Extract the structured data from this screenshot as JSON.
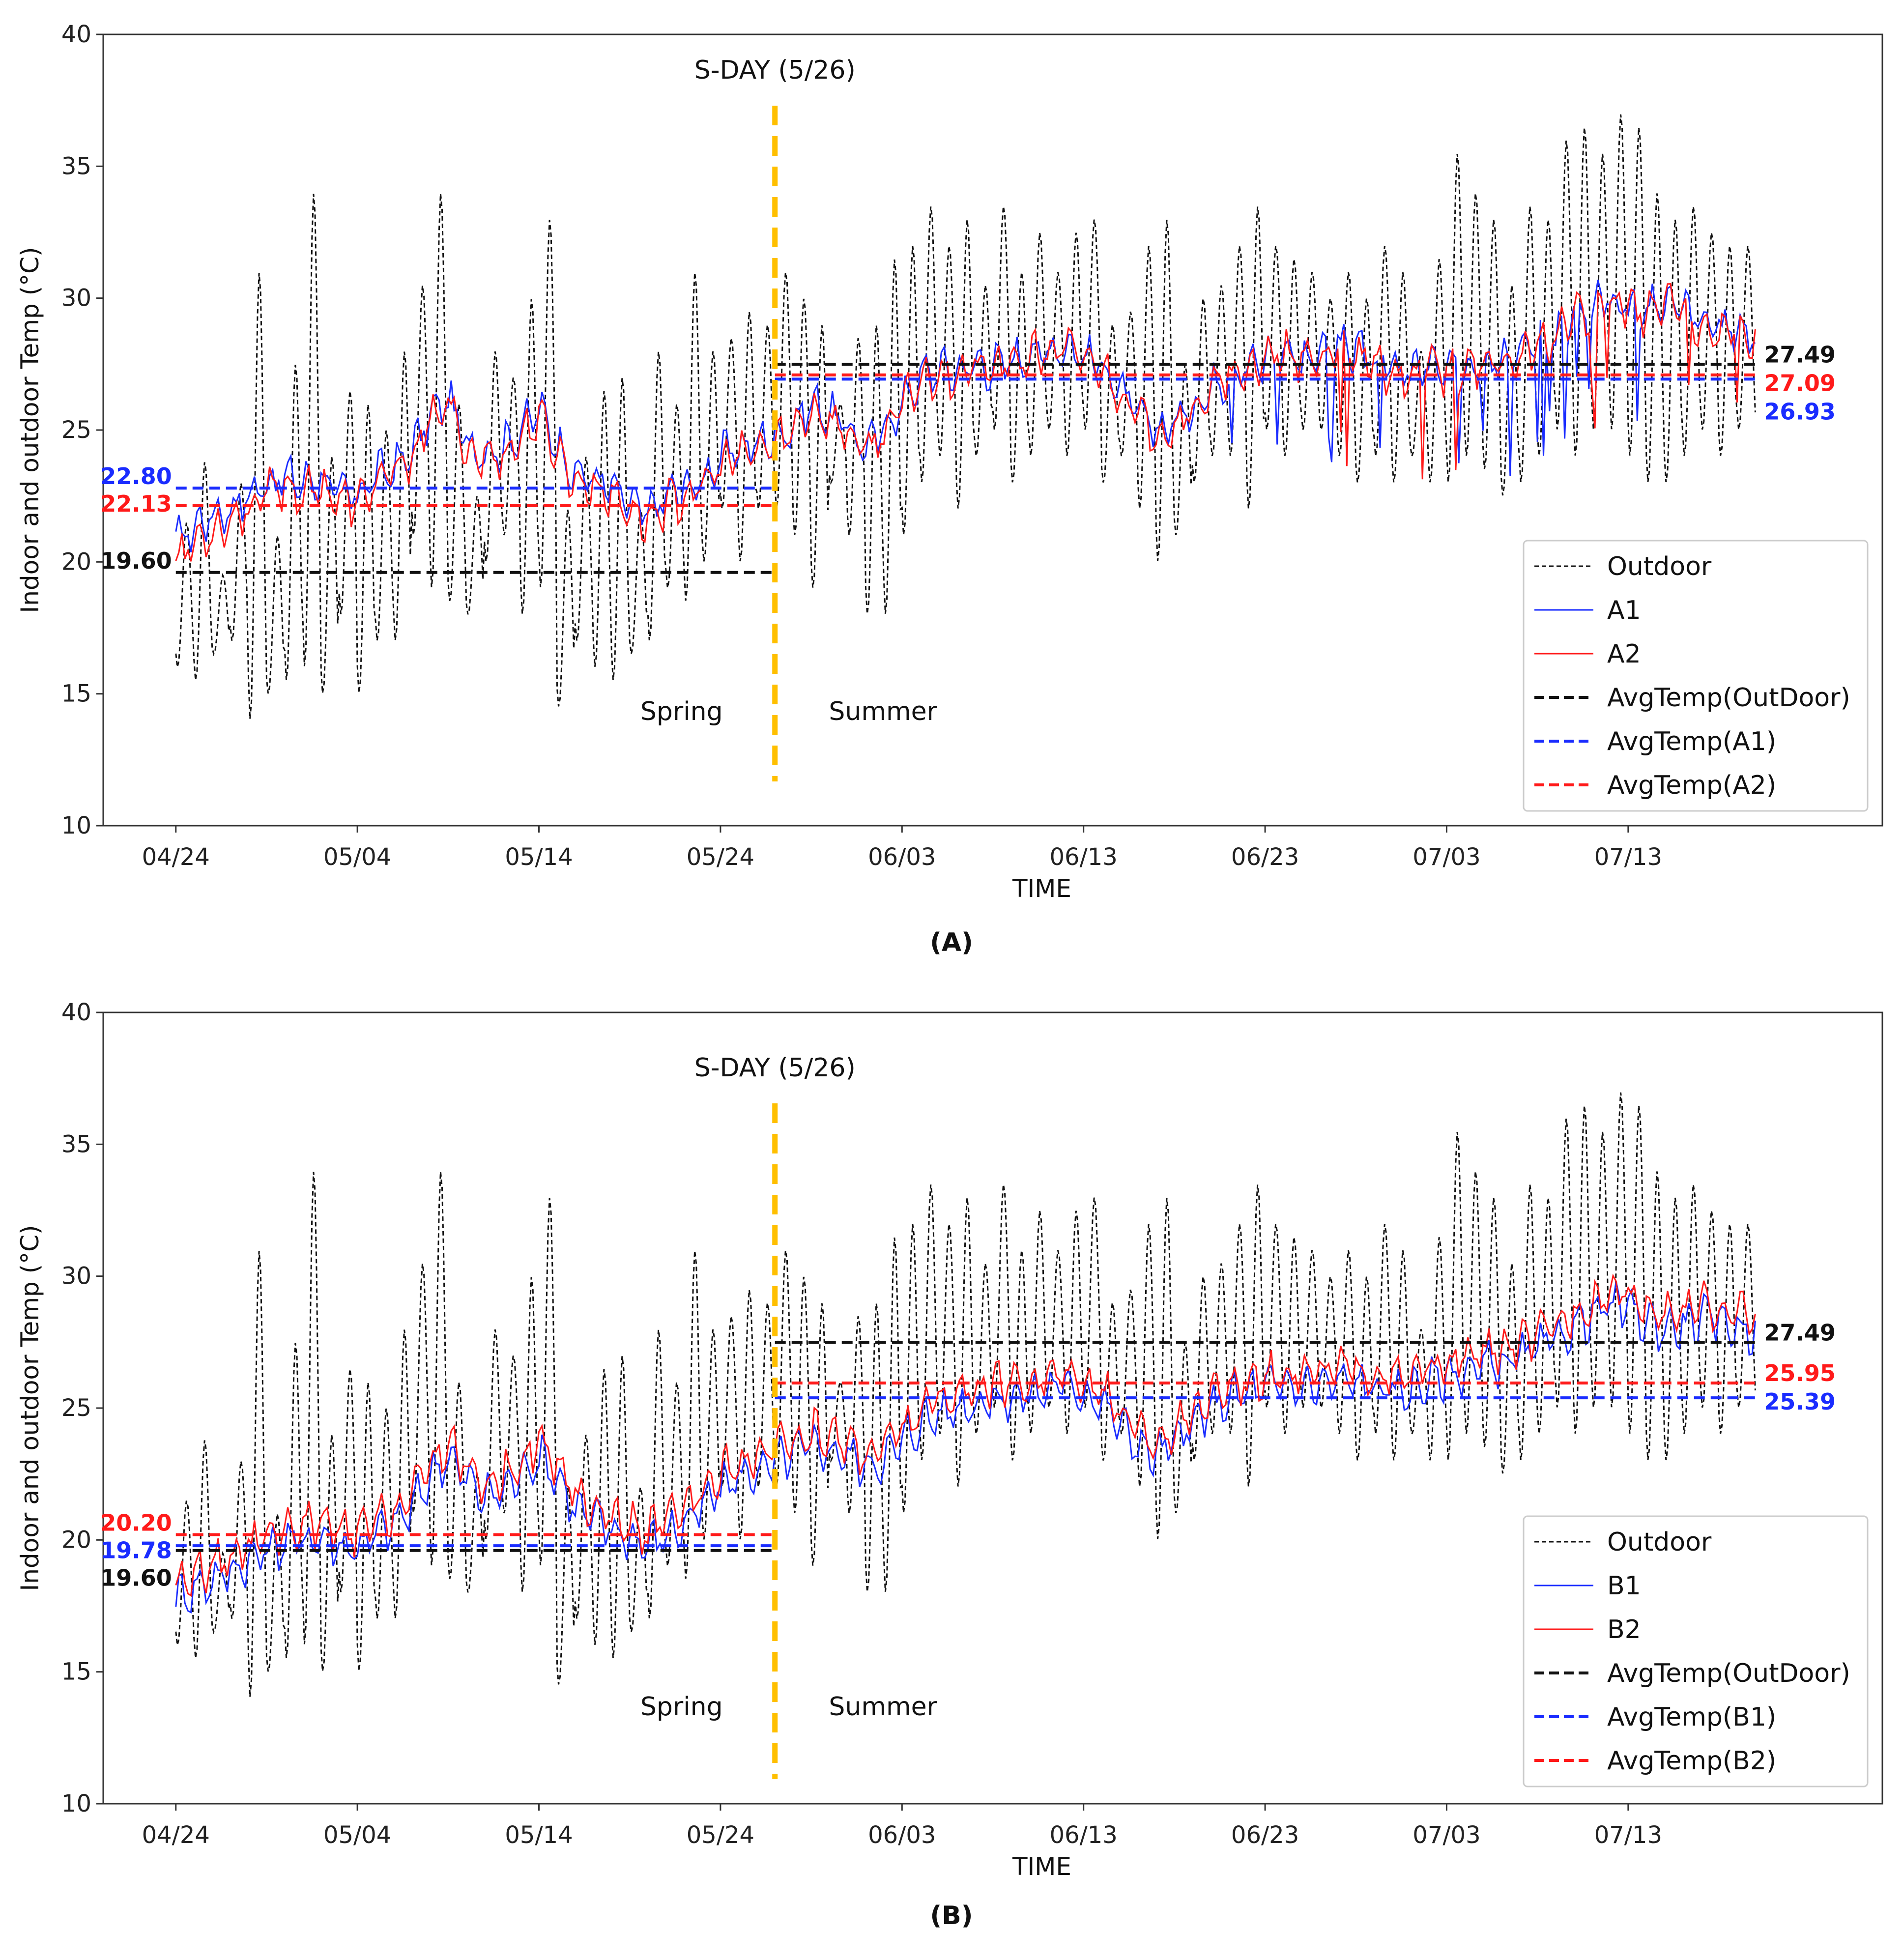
{
  "chart_data": [
    {
      "type": "line",
      "panel_label": "(A)",
      "xlabel": "TIME",
      "ylabel": "Indoor and outdoor Temp (°C)",
      "ylim": [
        10,
        40
      ],
      "yticks": [
        "10",
        "15",
        "20",
        "25",
        "30",
        "35",
        "40"
      ],
      "x_day_range": [
        -4,
        94
      ],
      "xticks": [
        {
          "label": "04/24",
          "day": 0
        },
        {
          "label": "05/04",
          "day": 10
        },
        {
          "label": "05/14",
          "day": 20
        },
        {
          "label": "05/24",
          "day": 30
        },
        {
          "label": "06/03",
          "day": 40
        },
        {
          "label": "06/13",
          "day": 50
        },
        {
          "label": "06/23",
          "day": 60
        },
        {
          "label": "07/03",
          "day": 70
        },
        {
          "label": "07/13",
          "day": 80
        }
      ],
      "data_start_day": 0,
      "data_end_day": 87,
      "sday": {
        "label": "S-DAY (5/26)",
        "day": 33
      },
      "season_labels": {
        "spring": "Spring",
        "summer": "Summer"
      },
      "colors": {
        "outdoor": "#111111",
        "s1": "#1a2cff",
        "s2": "#ff1a1a",
        "sday": "#ffbf00"
      },
      "series": [
        {
          "name": "Outdoor",
          "key": "outdoor",
          "daily_max": [
            21.5,
            23.8,
            19.5,
            23,
            31,
            21,
            27.5,
            34,
            24,
            26.5,
            26,
            25,
            28,
            30.5,
            34,
            26,
            22.5,
            28,
            27,
            30,
            33,
            22,
            24,
            26.5,
            27,
            22,
            28,
            26,
            31,
            28,
            28.5,
            29.5,
            29,
            31,
            30,
            29,
            26,
            28.5,
            29,
            31.5,
            32,
            33.5,
            32,
            33,
            30.5,
            33.5,
            31,
            32.5,
            31,
            32.5,
            33,
            29,
            29.5,
            32,
            33,
            27.5,
            30,
            30.5,
            32,
            33.5,
            32,
            31.5,
            31,
            30,
            31,
            30,
            32,
            31,
            28,
            31.5,
            35.5,
            34,
            33,
            30.5,
            33.5,
            33,
            36,
            36.5,
            35.5,
            37,
            36.5,
            34,
            33,
            33.5,
            32.5,
            32,
            32
          ],
          "daily_min": [
            16,
            15.5,
            16.5,
            17,
            14,
            15,
            15.5,
            16,
            15,
            18,
            15,
            17,
            17,
            21,
            19,
            18.5,
            18,
            20,
            21,
            18,
            19,
            14.5,
            17,
            16,
            15.5,
            16.5,
            17,
            19,
            18.5,
            20,
            22,
            20,
            22,
            22,
            21,
            19,
            23,
            21,
            18,
            18,
            21,
            23,
            24,
            22,
            24,
            25,
            23,
            24,
            25,
            24,
            25,
            23,
            24,
            22,
            20,
            21,
            23,
            24,
            24,
            22,
            25,
            24,
            25,
            25,
            24,
            23,
            24,
            23,
            24,
            23,
            23,
            24,
            23.5,
            22.5,
            23,
            24,
            25,
            24,
            25,
            25,
            24,
            23,
            23,
            24,
            25,
            24,
            25
          ]
        },
        {
          "name": "A1",
          "key": "s1",
          "daily_mean": [
            20.8,
            21.3,
            21.8,
            22,
            22.5,
            23,
            23.2,
            23,
            23.2,
            22.6,
            22.5,
            23.3,
            23.5,
            24.2,
            25.5,
            26.2,
            24.5,
            24.2,
            24.3,
            25,
            25.8,
            24.5,
            23.3,
            23.2,
            22.8,
            22.2,
            21.8,
            22.5,
            22.8,
            23,
            24,
            24.3,
            24.5,
            24.7,
            25.2,
            26,
            25.6,
            25.1,
            24.3,
            25,
            26,
            27,
            27.3,
            27.2,
            27.5,
            27.4,
            27.6,
            27.9,
            28,
            28.2,
            27.8,
            27.5,
            26.5,
            25.6,
            25,
            25.3,
            25.8,
            26.6,
            27.1,
            27.4,
            27.8,
            28.1,
            27.6,
            27.9,
            28.2,
            28,
            27.5,
            27.3,
            27.2,
            27.5,
            27.2,
            27.4,
            27.7,
            27.6,
            27.9,
            28.2,
            28.6,
            29.3,
            29.6,
            30.1,
            29.7,
            29.5,
            29.8,
            29.6,
            29.1,
            28.8,
            28.9,
            28.6
          ],
          "mean_label": [
            "22.80",
            "26.93"
          ],
          "mean_values": [
            22.8,
            26.93
          ]
        },
        {
          "name": "A2",
          "key": "s2",
          "daily_mean": [
            20.2,
            20.7,
            21.2,
            21.6,
            22,
            22.6,
            22.9,
            22.6,
            22.9,
            22.3,
            22.2,
            23,
            23.3,
            24,
            25.3,
            26,
            24.2,
            24,
            24,
            24.7,
            25.5,
            24.2,
            23,
            22.9,
            22.5,
            22,
            21.5,
            22.2,
            22.5,
            22.8,
            23.7,
            24,
            24.2,
            24.5,
            25,
            25.8,
            25.4,
            24.9,
            24.2,
            24.9,
            25.9,
            26.9,
            27.2,
            27.1,
            27.4,
            27.3,
            27.5,
            27.8,
            27.9,
            28.1,
            27.7,
            27.4,
            26.4,
            25.5,
            24.9,
            25.2,
            25.7,
            26.5,
            27,
            27.3,
            27.7,
            28,
            27.5,
            27.8,
            28.1,
            27.9,
            27.4,
            27.2,
            27.1,
            27.4,
            27.1,
            27.3,
            27.6,
            27.5,
            27.8,
            28.1,
            28.5,
            29.2,
            29.5,
            30,
            29.6,
            29.4,
            29.7,
            29.5,
            29,
            28.7,
            28.8,
            28.5
          ],
          "mean_label": [
            "22.13",
            "27.09"
          ],
          "mean_values": [
            22.13,
            27.09
          ]
        }
      ],
      "outdoor_mean_label": [
        "19.60",
        "27.49"
      ],
      "outdoor_mean_values": [
        19.6,
        27.49
      ],
      "legend": [
        "Outdoor",
        "A1",
        "A2",
        "AvgTemp(OutDoor)",
        "AvgTemp(A1)",
        "AvgTemp(A2)"
      ]
    },
    {
      "type": "line",
      "panel_label": "(B)",
      "xlabel": "TIME",
      "ylabel": "Indoor and outdoor Temp (°C)",
      "ylim": [
        10,
        40
      ],
      "yticks": [
        "10",
        "15",
        "20",
        "25",
        "30",
        "35",
        "40"
      ],
      "x_day_range": [
        -4,
        94
      ],
      "xticks": [
        {
          "label": "04/24",
          "day": 0
        },
        {
          "label": "05/04",
          "day": 10
        },
        {
          "label": "05/14",
          "day": 20
        },
        {
          "label": "05/24",
          "day": 30
        },
        {
          "label": "06/03",
          "day": 40
        },
        {
          "label": "06/13",
          "day": 50
        },
        {
          "label": "06/23",
          "day": 60
        },
        {
          "label": "07/03",
          "day": 70
        },
        {
          "label": "07/13",
          "day": 80
        }
      ],
      "data_start_day": 0,
      "data_end_day": 87,
      "sday": {
        "label": "S-DAY (5/26)",
        "day": 33
      },
      "season_labels": {
        "spring": "Spring",
        "summer": "Summer"
      },
      "colors": {
        "outdoor": "#111111",
        "s1": "#1a2cff",
        "s2": "#ff1a1a",
        "sday": "#ffbf00"
      },
      "series": [
        {
          "name": "Outdoor",
          "key": "outdoor",
          "daily_max": [
            21.5,
            23.8,
            19.5,
            23,
            31,
            21,
            27.5,
            34,
            24,
            26.5,
            26,
            25,
            28,
            30.5,
            34,
            26,
            22.5,
            28,
            27,
            30,
            33,
            22,
            24,
            26.5,
            27,
            22,
            28,
            26,
            31,
            28,
            28.5,
            29.5,
            29,
            31,
            30,
            29,
            26,
            28.5,
            29,
            31.5,
            32,
            33.5,
            32,
            33,
            30.5,
            33.5,
            31,
            32.5,
            31,
            32.5,
            33,
            29,
            29.5,
            32,
            33,
            27.5,
            30,
            30.5,
            32,
            33.5,
            32,
            31.5,
            31,
            30,
            31,
            30,
            32,
            31,
            28,
            31.5,
            35.5,
            34,
            33,
            30.5,
            33.5,
            33,
            36,
            36.5,
            35.5,
            37,
            36.5,
            34,
            33,
            33.5,
            32.5,
            32,
            32
          ],
          "daily_min": [
            16,
            15.5,
            16.5,
            17,
            14,
            15,
            15.5,
            16,
            15,
            18,
            15,
            17,
            17,
            21,
            19,
            18.5,
            18,
            20,
            21,
            18,
            19,
            14.5,
            17,
            16,
            15.5,
            16.5,
            17,
            19,
            18.5,
            20,
            22,
            20,
            22,
            22,
            21,
            19,
            23,
            21,
            18,
            18,
            21,
            23,
            24,
            22,
            24,
            25,
            23,
            24,
            25,
            24,
            25,
            23,
            24,
            22,
            20,
            21,
            23,
            24,
            24,
            22,
            25,
            24,
            25,
            25,
            24,
            23,
            24,
            23,
            24,
            23,
            23,
            24,
            23.5,
            22.5,
            23,
            24,
            25,
            24,
            25,
            25,
            24,
            23,
            23,
            24,
            25,
            24,
            25
          ]
        },
        {
          "name": "B1",
          "key": "s1",
          "daily_mean": [
            17.8,
            18.2,
            18.5,
            18.8,
            19.2,
            19.6,
            19.9,
            20,
            20.1,
            19.8,
            19.7,
            20.2,
            20.6,
            21.2,
            22.4,
            23.2,
            22.3,
            21.6,
            21.9,
            22.5,
            23.2,
            22.4,
            21.2,
            20.8,
            20.4,
            20.1,
            19.8,
            20.2,
            20.6,
            21.2,
            22,
            22.4,
            22.6,
            22.9,
            23.3,
            23.6,
            23.4,
            23.2,
            22.8,
            23.1,
            23.7,
            24.4,
            24.8,
            25,
            25.2,
            25.3,
            25.4,
            25.5,
            25.7,
            25.9,
            25.6,
            25.2,
            24.4,
            23.6,
            23.2,
            23.7,
            24.3,
            25,
            25.4,
            25.6,
            25.8,
            25.9,
            25.8,
            25.9,
            26,
            26,
            25.8,
            25.6,
            25.7,
            26,
            26.2,
            26.4,
            26.6,
            26.7,
            26.9,
            27.2,
            27.6,
            28.1,
            28.5,
            28.9,
            28.8,
            28.3,
            28,
            28.2,
            28.4,
            28.3,
            28.1,
            27.9
          ],
          "mean_label": [
            "19.78",
            "25.39"
          ],
          "mean_values": [
            19.78,
            25.39
          ]
        },
        {
          "name": "B2",
          "key": "s2",
          "daily_mean": [
            18.3,
            18.7,
            19,
            19.3,
            19.7,
            20.1,
            20.4,
            20.5,
            20.6,
            20.3,
            20.2,
            20.7,
            21.1,
            21.7,
            22.9,
            23.7,
            22.8,
            22.1,
            22.4,
            23,
            23.7,
            22.9,
            21.7,
            21.3,
            20.9,
            20.6,
            20.3,
            20.7,
            21.1,
            21.7,
            22.5,
            22.9,
            23.1,
            23.4,
            23.8,
            24.1,
            23.9,
            23.7,
            23.3,
            23.6,
            24.2,
            24.9,
            25.3,
            25.5,
            25.7,
            25.8,
            25.9,
            26,
            26.2,
            26.4,
            26.1,
            25.7,
            24.9,
            24.1,
            23.7,
            24.2,
            24.8,
            25.5,
            25.9,
            26.1,
            26.3,
            26.4,
            26.3,
            26.4,
            26.5,
            26.5,
            26.3,
            26.1,
            26.2,
            26.5,
            26.7,
            26.9,
            27.1,
            27.2,
            27.4,
            27.7,
            28.1,
            28.6,
            29,
            29.4,
            29.3,
            28.8,
            28.5,
            28.7,
            28.9,
            28.8,
            28.6,
            28.4
          ],
          "mean_label": [
            "20.20",
            "25.95"
          ],
          "mean_values": [
            20.2,
            25.95
          ]
        }
      ],
      "outdoor_mean_label": [
        "19.60",
        "27.49"
      ],
      "outdoor_mean_values": [
        19.6,
        27.49
      ],
      "legend": [
        "Outdoor",
        "B1",
        "B2",
        "AvgTemp(OutDoor)",
        "AvgTemp(B1)",
        "AvgTemp(B2)"
      ]
    }
  ]
}
